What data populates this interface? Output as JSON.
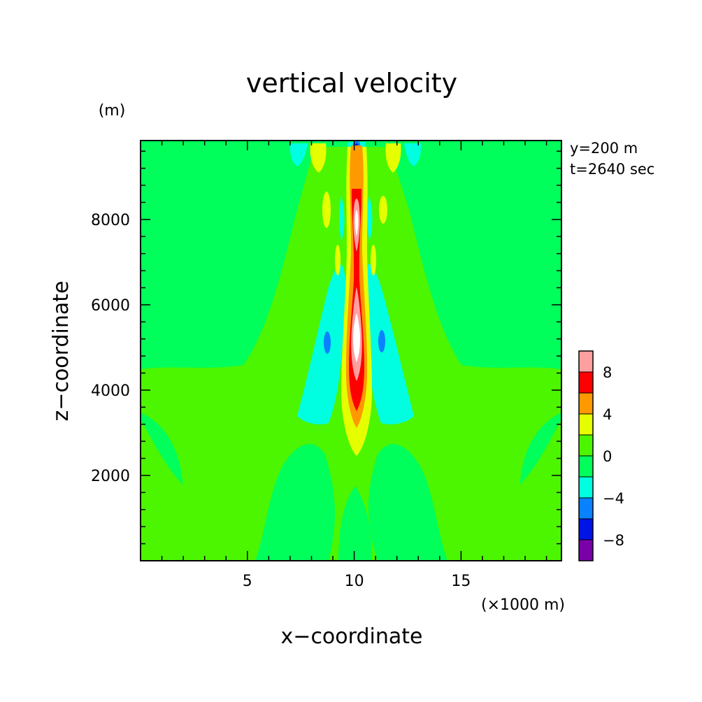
{
  "chart_data": {
    "type": "heatmap",
    "subtype": "filled-contour",
    "title": "vertical velocity",
    "xlabel": "x−coordinate",
    "ylabel": "z−coordinate",
    "x_unit": "(×1000 m)",
    "y_unit": "(m)",
    "annotations": [
      "y=200 m",
      "t=2640 sec"
    ],
    "xlim": [
      0,
      19.7
    ],
    "ylim": [
      0,
      9850
    ],
    "x_ticks": [
      5,
      10,
      15
    ],
    "y_ticks": [
      2000,
      4000,
      6000,
      8000
    ],
    "grid": false,
    "legend_position": "right-bottom colorbar",
    "colorbar": {
      "levels": [
        -10,
        -8,
        -6,
        -4,
        -2,
        0,
        2,
        4,
        6,
        8,
        10
      ],
      "tick_labels": [
        "8",
        "4",
        "0",
        "−4",
        "−8"
      ],
      "tick_values": [
        8,
        4,
        0,
        -4,
        -8
      ],
      "colors": [
        "#7a00a8",
        "#0014e6",
        "#0a82ff",
        "#00ffe0",
        "#00ff5a",
        "#4cf500",
        "#e6ff00",
        "#ff9900",
        "#ff0000",
        "#ffa0a0"
      ]
    },
    "background_value_bin": "0 to 2 (green) with 0 to -2 regions",
    "features": [
      {
        "name": "central updraft core",
        "x": 10.2,
        "z_range": [
          3700,
          8800
        ],
        "max_bin": "8 to 10"
      },
      {
        "name": "downdraft lobe left",
        "x": 8.9,
        "z_range": [
          3400,
          6100
        ],
        "min_bin": "-6 to -4"
      },
      {
        "name": "downdraft lobe right",
        "x": 11.5,
        "z_range": [
          3400,
          6100
        ],
        "min_bin": "-6 to -4"
      },
      {
        "name": "top downdraft",
        "x": 10.2,
        "z": 9700,
        "min_bin": "-8 to -6"
      }
    ]
  },
  "colors": {
    "background": "#ffffff",
    "axis": "#000000"
  }
}
